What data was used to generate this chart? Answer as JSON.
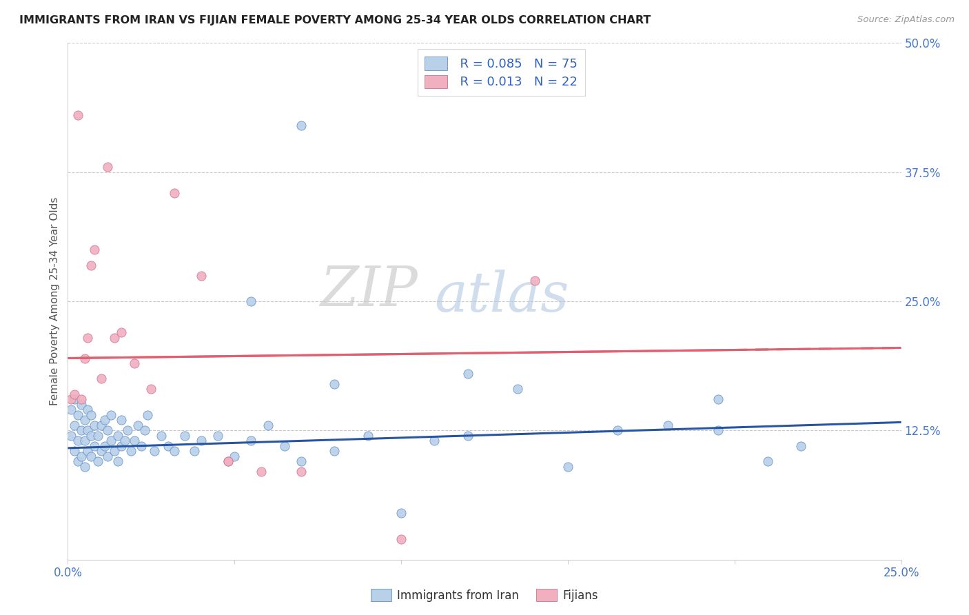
{
  "title": "IMMIGRANTS FROM IRAN VS FIJIAN FEMALE POVERTY AMONG 25-34 YEAR OLDS CORRELATION CHART",
  "source": "Source: ZipAtlas.com",
  "ylabel": "Female Poverty Among 25-34 Year Olds",
  "xlim": [
    0.0,
    0.25
  ],
  "ylim": [
    0.0,
    0.5
  ],
  "xtick_positions": [
    0.0,
    0.05,
    0.1,
    0.15,
    0.2,
    0.25
  ],
  "xtick_labels": [
    "0.0%",
    "",
    "",
    "",
    "",
    "25.0%"
  ],
  "yticks_right": [
    0.125,
    0.25,
    0.375,
    0.5
  ],
  "ytick_right_labels": [
    "12.5%",
    "25.0%",
    "37.5%",
    "50.0%"
  ],
  "blue_fill": "#b8d0e8",
  "blue_edge": "#6090c8",
  "pink_fill": "#f0b0c0",
  "pink_edge": "#d07090",
  "blue_line_color": "#2855a0",
  "pink_line_color": "#e06070",
  "legend_color": "#3060c0",
  "watermark_zip": "ZIP",
  "watermark_atlas": "atlas",
  "series1_label": "Immigrants from Iran",
  "series2_label": "Fijians",
  "legend_R_blue": "R = 0.085",
  "legend_N_blue": "N = 75",
  "legend_R_pink": "R = 0.013",
  "legend_N_pink": "N = 22",
  "blue_line_y0": 0.108,
  "blue_line_y1": 0.133,
  "pink_line_y0": 0.195,
  "pink_line_y1": 0.205,
  "blue_x": [
    0.001,
    0.001,
    0.002,
    0.002,
    0.002,
    0.003,
    0.003,
    0.003,
    0.004,
    0.004,
    0.004,
    0.005,
    0.005,
    0.005,
    0.006,
    0.006,
    0.006,
    0.007,
    0.007,
    0.007,
    0.008,
    0.008,
    0.009,
    0.009,
    0.01,
    0.01,
    0.011,
    0.011,
    0.012,
    0.012,
    0.013,
    0.013,
    0.014,
    0.015,
    0.015,
    0.016,
    0.016,
    0.017,
    0.018,
    0.019,
    0.02,
    0.021,
    0.022,
    0.023,
    0.024,
    0.026,
    0.028,
    0.03,
    0.032,
    0.035,
    0.038,
    0.04,
    0.045,
    0.05,
    0.055,
    0.06,
    0.065,
    0.07,
    0.08,
    0.09,
    0.1,
    0.11,
    0.12,
    0.135,
    0.15,
    0.165,
    0.18,
    0.195,
    0.21,
    0.22,
    0.07,
    0.08,
    0.055,
    0.12,
    0.195
  ],
  "blue_y": [
    0.145,
    0.12,
    0.105,
    0.13,
    0.155,
    0.095,
    0.115,
    0.14,
    0.1,
    0.125,
    0.15,
    0.09,
    0.115,
    0.135,
    0.105,
    0.125,
    0.145,
    0.1,
    0.12,
    0.14,
    0.11,
    0.13,
    0.095,
    0.12,
    0.105,
    0.13,
    0.11,
    0.135,
    0.1,
    0.125,
    0.115,
    0.14,
    0.105,
    0.12,
    0.095,
    0.11,
    0.135,
    0.115,
    0.125,
    0.105,
    0.115,
    0.13,
    0.11,
    0.125,
    0.14,
    0.105,
    0.12,
    0.11,
    0.105,
    0.12,
    0.105,
    0.115,
    0.12,
    0.1,
    0.115,
    0.13,
    0.11,
    0.095,
    0.105,
    0.12,
    0.045,
    0.115,
    0.12,
    0.165,
    0.09,
    0.125,
    0.13,
    0.125,
    0.095,
    0.11,
    0.42,
    0.17,
    0.25,
    0.18,
    0.155
  ],
  "pink_x": [
    0.001,
    0.002,
    0.003,
    0.004,
    0.005,
    0.006,
    0.007,
    0.008,
    0.01,
    0.012,
    0.014,
    0.016,
    0.02,
    0.025,
    0.032,
    0.04,
    0.048,
    0.058,
    0.07,
    0.14,
    0.1,
    0.048
  ],
  "pink_y": [
    0.155,
    0.16,
    0.43,
    0.155,
    0.195,
    0.215,
    0.285,
    0.3,
    0.175,
    0.38,
    0.215,
    0.22,
    0.19,
    0.165,
    0.355,
    0.275,
    0.095,
    0.085,
    0.085,
    0.27,
    0.02,
    0.095
  ]
}
